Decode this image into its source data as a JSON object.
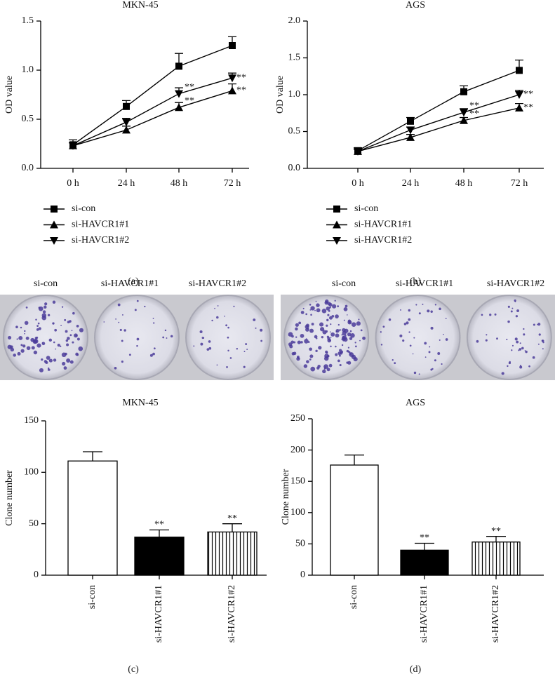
{
  "chart_data": [
    {
      "type": "line",
      "title": "MKN-45",
      "panel_label": "(a)",
      "y_label": "OD value",
      "categories": [
        "0 h",
        "24 h",
        "48 h",
        "72 h"
      ],
      "ylim": [
        0,
        1.5
      ],
      "yticks": [
        {
          "value": 0,
          "label": "0.0"
        },
        0.5,
        {
          "value": 1,
          "label": "1.0"
        },
        1.5
      ],
      "series": [
        {
          "name": "si-con",
          "color": "#000000",
          "marker": "square",
          "values": [
            0.24,
            0.63,
            1.04,
            1.25
          ],
          "errors": [
            0.05,
            0.06,
            0.13,
            0.09
          ]
        },
        {
          "name": "si-HAVCR1#1",
          "color": "#000000",
          "marker": "triangle-up",
          "values": [
            0.23,
            0.39,
            0.62,
            0.79
          ],
          "errors": [
            0.03,
            0.04,
            0.05,
            0.07
          ],
          "annotations": [
            null,
            null,
            "**",
            "**"
          ]
        },
        {
          "name": "si-HAVCR1#2",
          "color": "#000000",
          "marker": "triangle-down",
          "values": [
            0.23,
            0.47,
            0.76,
            0.92
          ],
          "errors": [
            0.03,
            0.04,
            0.06,
            0.05
          ],
          "annotations": [
            null,
            null,
            "**",
            "**"
          ]
        }
      ]
    },
    {
      "type": "line",
      "title": "AGS",
      "panel_label": "(b)",
      "y_label": "OD value",
      "categories": [
        "0 h",
        "24 h",
        "48 h",
        "72 h"
      ],
      "ylim": [
        0,
        2
      ],
      "yticks": [
        {
          "value": 0,
          "label": "0.0"
        },
        0.5,
        {
          "value": 1,
          "label": "1.0"
        },
        1.5,
        {
          "value": 2,
          "label": "2.0"
        }
      ],
      "series": [
        {
          "name": "si-con",
          "color": "#000000",
          "marker": "square",
          "values": [
            0.24,
            0.64,
            1.04,
            1.33
          ],
          "errors": [
            0.04,
            0.05,
            0.08,
            0.14
          ]
        },
        {
          "name": "si-HAVCR1#1",
          "color": "#000000",
          "marker": "triangle-up",
          "values": [
            0.23,
            0.42,
            0.65,
            0.82
          ],
          "errors": [
            0.03,
            0.04,
            0.04,
            0.06
          ],
          "annotations": [
            null,
            null,
            "**",
            "**"
          ]
        },
        {
          "name": "si-HAVCR1#2",
          "color": "#000000",
          "marker": "triangle-down",
          "values": [
            0.23,
            0.52,
            0.76,
            1.0
          ],
          "errors": [
            0.03,
            0.04,
            0.05,
            0.06
          ],
          "annotations": [
            null,
            null,
            "**",
            "**"
          ]
        }
      ]
    },
    {
      "type": "bar",
      "title": "MKN-45",
      "panel_label": "(c)",
      "y_label": "Clone number",
      "categories": [
        "si-con",
        "si-HAVCR1#1",
        "si-HAVCR1#2"
      ],
      "values": [
        111,
        37,
        42
      ],
      "errors": [
        9,
        7,
        8
      ],
      "annotations": [
        null,
        "**",
        "**"
      ],
      "fills": [
        "white",
        "black",
        "stripes"
      ],
      "ylim": [
        0,
        150
      ],
      "yticks": [
        0,
        50,
        100,
        150
      ]
    },
    {
      "type": "bar",
      "title": "AGS",
      "panel_label": "(d)",
      "y_label": "Clone number",
      "categories": [
        "si-con",
        "si-HAVCR1#1",
        "si-HAVCR1#2"
      ],
      "values": [
        176,
        40,
        53
      ],
      "errors": [
        16,
        11,
        9
      ],
      "annotations": [
        null,
        "**",
        "**"
      ],
      "fills": [
        "white",
        "black",
        "stripes"
      ],
      "ylim": [
        0,
        250
      ],
      "yticks": [
        0,
        50,
        100,
        150,
        200,
        250
      ]
    }
  ],
  "photo_panels": [
    {
      "labels": [
        "si-con",
        "si-HAVCR1#1",
        "si-HAVCR1#2"
      ]
    },
    {
      "labels": [
        "si-con",
        "si-HAVCR1#1",
        "si-HAVCR1#2"
      ]
    }
  ]
}
